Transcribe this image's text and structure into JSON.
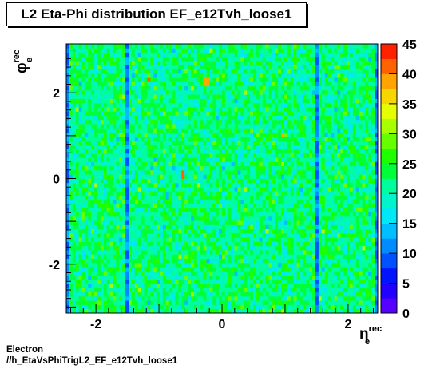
{
  "chart_data": {
    "type": "heatmap",
    "title": "L2 Eta-Phi distribution EF_e12Tvh_loose1",
    "xlabel": {
      "base": "η",
      "sub": "e",
      "sup": "rec"
    },
    "ylabel": {
      "base": "φ",
      "sub": "e",
      "sup": "rec"
    },
    "xlim": [
      -2.47,
      2.47
    ],
    "ylim": [
      -3.1416,
      3.1416
    ],
    "x_ticks": [
      -2,
      0,
      2
    ],
    "y_ticks": [
      -2,
      0,
      2
    ],
    "z_range": [
      0,
      45
    ],
    "z_ticks": [
      0,
      5,
      10,
      15,
      20,
      25,
      30,
      35,
      40,
      45
    ],
    "bins": {
      "x": 100,
      "y": 64
    },
    "typical_count": 22,
    "spread": 4,
    "low_columns_eta": [
      -1.5,
      -2.45,
      1.5,
      2.45
    ],
    "low_column_count": 11,
    "hot_spots": [
      {
        "eta": -0.6,
        "phi": 0.1,
        "count": 40
      },
      {
        "eta": -1.15,
        "phi": 2.3,
        "count": 40
      },
      {
        "eta": -0.25,
        "phi": 2.25,
        "count": 39
      },
      {
        "eta": 0.95,
        "phi": 1.0,
        "count": 38
      }
    ]
  },
  "footer": {
    "line1": "Electron",
    "line2": "//h_EtaVsPhiTrigL2_EF_e12Tvh_loose1"
  }
}
